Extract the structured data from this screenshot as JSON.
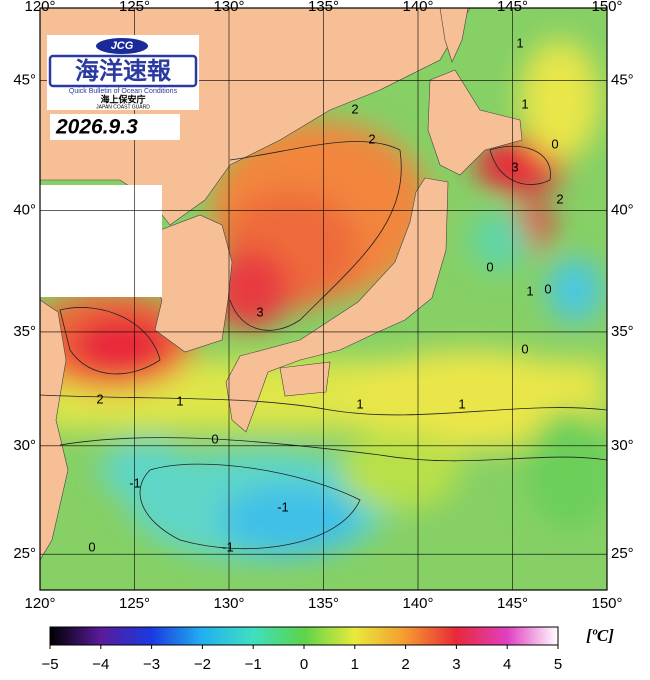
{
  "chart_data": {
    "type": "map",
    "logo": {
      "badge": "JCG",
      "title": "海洋速報",
      "subtitle": "Quick Bulletin of Ocean Conditions",
      "agency": "海上保安庁",
      "agency_en": "JAPAN COAST GUARD"
    },
    "date": "2026.9.3",
    "xlim": [
      120,
      150
    ],
    "ylim": [
      23.3,
      47.6
    ],
    "xticks": [
      {
        "value": 120,
        "label": "120°"
      },
      {
        "value": 125,
        "label": "125°"
      },
      {
        "value": 130,
        "label": "130°"
      },
      {
        "value": 135,
        "label": "135°"
      },
      {
        "value": 140,
        "label": "140°"
      },
      {
        "value": 145,
        "label": "145°"
      },
      {
        "value": 150,
        "label": "150°"
      }
    ],
    "yticks": [
      {
        "value": 25,
        "label": "25°"
      },
      {
        "value": 30,
        "label": "30°"
      },
      {
        "value": 35,
        "label": "35°"
      },
      {
        "value": 40,
        "label": "40°"
      },
      {
        "value": 45,
        "label": "45°"
      }
    ],
    "grid": true,
    "contour_labels": [
      2,
      2,
      3,
      3,
      2,
      0,
      1,
      0,
      0,
      1,
      1,
      2,
      1,
      0,
      -1,
      -1,
      -1,
      0,
      1,
      1,
      0
    ],
    "colorbar": {
      "unit": "[ºC]",
      "lim": [
        -5,
        5
      ],
      "ticks": [
        {
          "value": -5,
          "label": "−5"
        },
        {
          "value": -4,
          "label": "−4"
        },
        {
          "value": -3,
          "label": "−3"
        },
        {
          "value": -2,
          "label": "−2"
        },
        {
          "value": -1,
          "label": "−1"
        },
        0,
        1,
        2,
        3,
        4,
        5
      ],
      "colors": [
        "#000000",
        "#5a1a9a",
        "#1a3ae0",
        "#22b0f0",
        "#3ee0c0",
        "#5cd44a",
        "#e8ea3a",
        "#f59a30",
        "#e8283a",
        "#e040c0",
        "#ffffff"
      ]
    }
  }
}
